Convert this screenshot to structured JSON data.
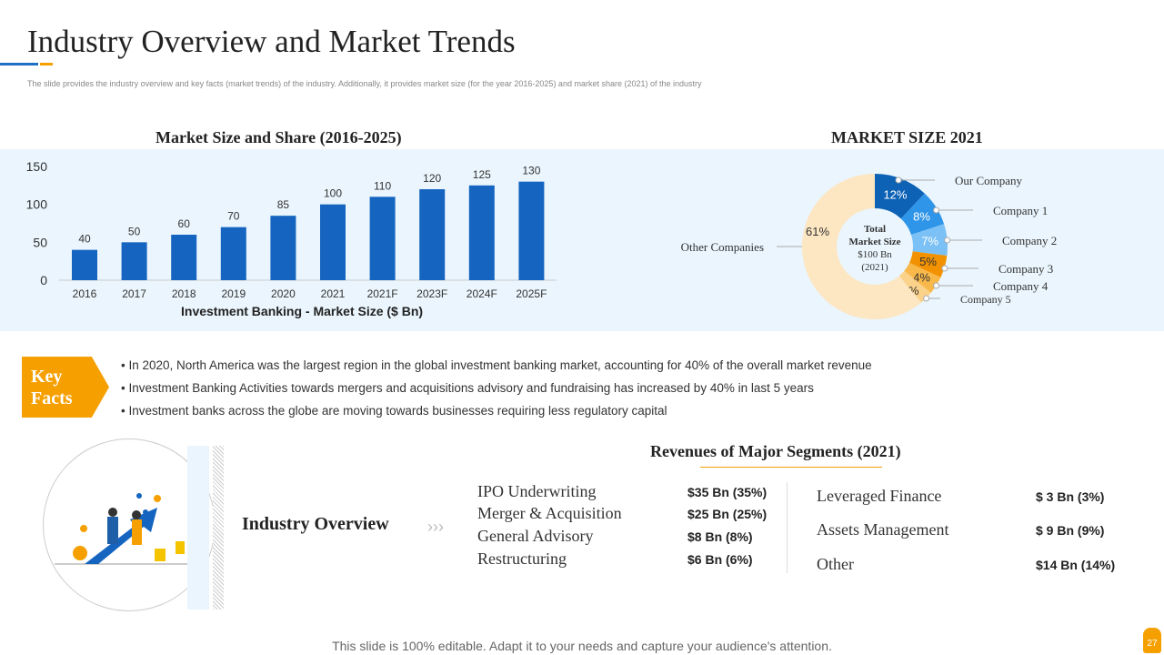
{
  "title": "Industry Overview and Market Trends",
  "subtitle": "The slide provides the industry overview and key facts (market trends) of the industry. Additionally, it provides market size (for the year 2016-2025) and market share (2021) of the industry",
  "chart_data": [
    {
      "type": "bar",
      "title": "Market Size and Share (2016-2025)",
      "xlabel": "Investment Banking - Market Size ($ Bn)",
      "ylabel": "",
      "ylim": [
        0,
        150
      ],
      "yticks": [
        0,
        50,
        100,
        150
      ],
      "categories": [
        "2016",
        "2017",
        "2018",
        "2019",
        "2020",
        "2021",
        "2021F",
        "2023F",
        "2024F",
        "2025F"
      ],
      "values": [
        40,
        50,
        60,
        70,
        85,
        100,
        110,
        120,
        125,
        130
      ],
      "color": "#1565c0",
      "grid": false
    },
    {
      "type": "pie",
      "title": "MARKET SIZE 2021",
      "donut": true,
      "center_label": [
        "Total",
        "Market Size",
        "$100 Bn",
        "(2021)"
      ],
      "slices": [
        {
          "name": "Our Company",
          "value": 12,
          "label": "12%",
          "color": "#0d62b5"
        },
        {
          "name": "Company 1",
          "value": 8,
          "label": "8%",
          "color": "#2f95e8"
        },
        {
          "name": "Company  2",
          "value": 7,
          "label": "7%",
          "color": "#7cc1f5"
        },
        {
          "name": "Company  3",
          "value": 5,
          "label": "5%",
          "color": "#f39200"
        },
        {
          "name": "Company 4",
          "value": 4,
          "label": "4%",
          "color": "#f8b94a"
        },
        {
          "name": "Company  5",
          "value": 3,
          "label": "3%",
          "color": "#fbd28a"
        },
        {
          "name": "Other Companies",
          "value": 61,
          "label": "61%",
          "color": "#fde6c2"
        }
      ]
    }
  ],
  "key_facts": {
    "label": "Key Facts",
    "items": [
      "In 2020, North America was the largest region in the global investment banking market, accounting for 40% of the overall market revenue",
      "Investment Banking Activities towards mergers and acquisitions advisory and fundraising has increased by 40% in last 5 years",
      "Investment banks across the globe are moving towards businesses requiring less regulatory capital"
    ]
  },
  "overview": {
    "label": "Industry Overview",
    "arrows": "›››"
  },
  "segments": {
    "title": "Revenues of Major Segments (2021)",
    "left": [
      {
        "name": "IPO Underwriting",
        "value": "$35 Bn (35%)"
      },
      {
        "name": "Merger & Acquisition",
        "value": "$25 Bn (25%)"
      },
      {
        "name": "General Advisory",
        "value": "$8 Bn (8%)"
      },
      {
        "name": "Restructuring",
        "value": "$6 Bn (6%)"
      }
    ],
    "right": [
      {
        "name": "Leveraged Finance",
        "value": "$ 3 Bn (3%)"
      },
      {
        "name": "Assets Management",
        "value": "$ 9 Bn (9%)"
      },
      {
        "name": "Other",
        "value": "$14 Bn (14%)"
      }
    ]
  },
  "footer": "This slide is 100% editable. Adapt it to your needs and capture your audience's attention.",
  "page_number": "27"
}
